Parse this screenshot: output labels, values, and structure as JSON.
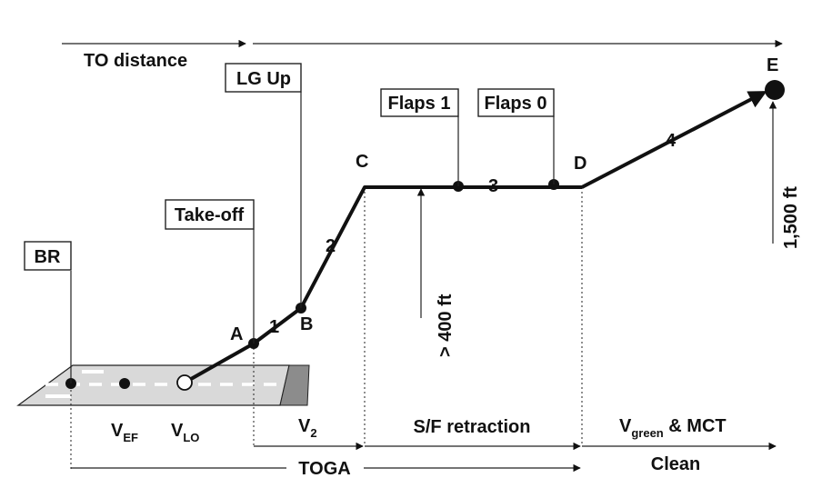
{
  "colors": {
    "ink": "#111111",
    "runway": "#d9d9d9",
    "runway_end": "#8c8c8c",
    "centerline": "#ffffff"
  },
  "top": {
    "to_distance": "TO distance"
  },
  "callouts": {
    "br": "BR",
    "take_off": "Take-off",
    "lg_up": "LG Up",
    "flaps_1": "Flaps 1",
    "flaps_0": "Flaps 0"
  },
  "points": {
    "a": "A",
    "b": "B",
    "c": "C",
    "d": "D",
    "e": "E"
  },
  "segments": {
    "s1": "1",
    "s2": "2",
    "s3": "3",
    "s4": "4"
  },
  "altitudes": {
    "above_400": "> 400 ft",
    "ft_1500": "1,500 ft"
  },
  "speeds": {
    "v": "V",
    "ef_sub": "EF",
    "lo_sub": "LO",
    "two_sub": "2",
    "green_sub": "green",
    "mct_suffix": " & MCT"
  },
  "phases": {
    "sf_retraction": "S/F retraction",
    "clean": "Clean",
    "toga": "TOGA"
  }
}
